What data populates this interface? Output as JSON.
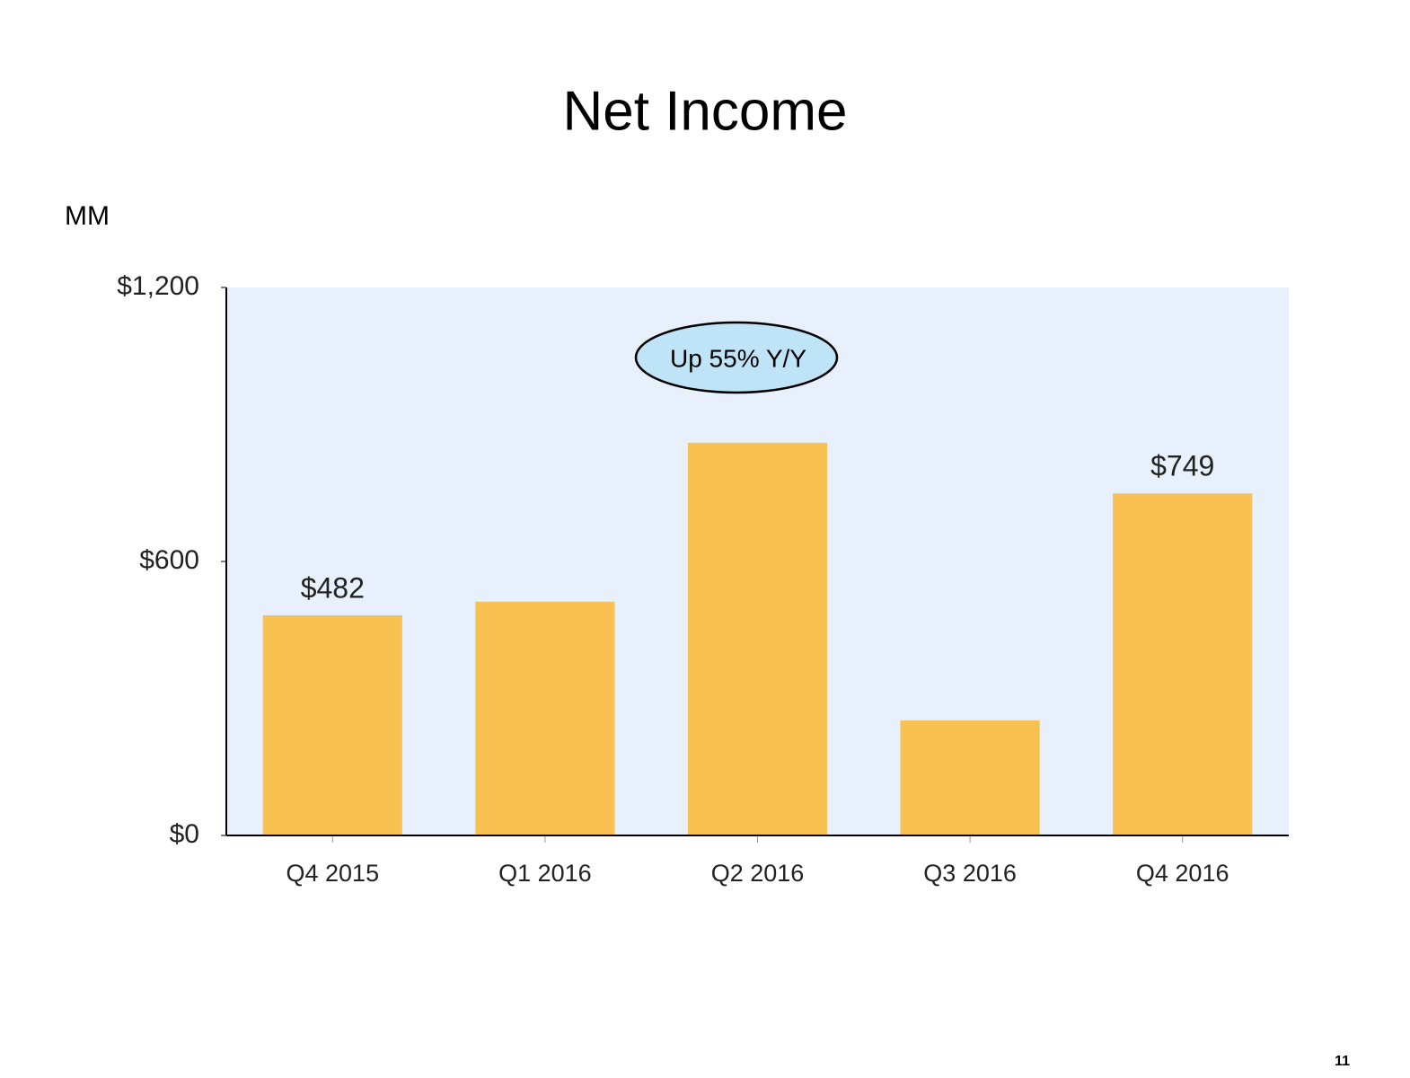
{
  "chart_data": {
    "type": "bar",
    "title": "Net Income",
    "y_unit": "MM",
    "annotation": "Up 55% Y/Y",
    "categories": [
      "Q4 2015",
      "Q1 2016",
      "Q2 2016",
      "Q3 2016",
      "Q4 2016"
    ],
    "values": [
      482,
      512,
      860,
      252,
      749
    ],
    "value_labels": [
      "$482",
      null,
      null,
      null,
      "$749"
    ],
    "color": "#f9c152",
    "background": "#e8f0fb",
    "ylim": [
      0,
      1200
    ],
    "yticks": [
      {
        "value": 0,
        "label": "$0"
      },
      {
        "value": 600,
        "label": "$600"
      },
      {
        "value": 1200,
        "label": "$1,200"
      }
    ],
    "grid": false
  },
  "page_number": "11"
}
